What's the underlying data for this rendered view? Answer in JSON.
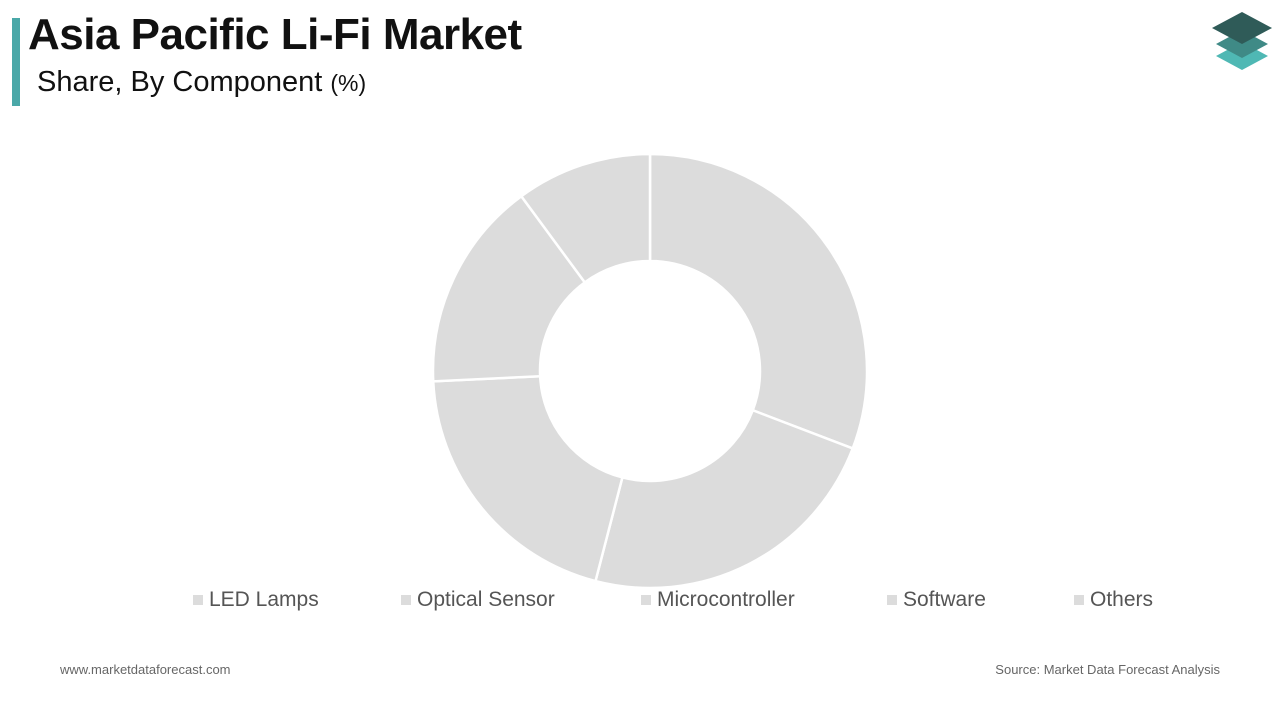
{
  "header": {
    "title": "Asia Pacific Li-Fi Market",
    "subtitle": "Share, By Component",
    "subtitle_unit": "(%)"
  },
  "colors": {
    "accent": "#4aa8a8",
    "slice": "#dcdcdc",
    "slice_border": "#ffffff",
    "logo_top": "#2f5b58",
    "logo_mid": "#3f8a86",
    "logo_bottom": "#4fb8b4"
  },
  "chart_data": {
    "type": "pie",
    "variant": "donut",
    "categories": [
      "LED Lamps",
      "Optical Sensor",
      "Microcontroller",
      "Software",
      "Others"
    ],
    "values": [
      30.5,
      23,
      20,
      15.5,
      10
    ],
    "legend": "bottom"
  },
  "footer": {
    "website": "www.marketdataforecast.com",
    "source": "Source: Market Data Forecast Analysis"
  }
}
